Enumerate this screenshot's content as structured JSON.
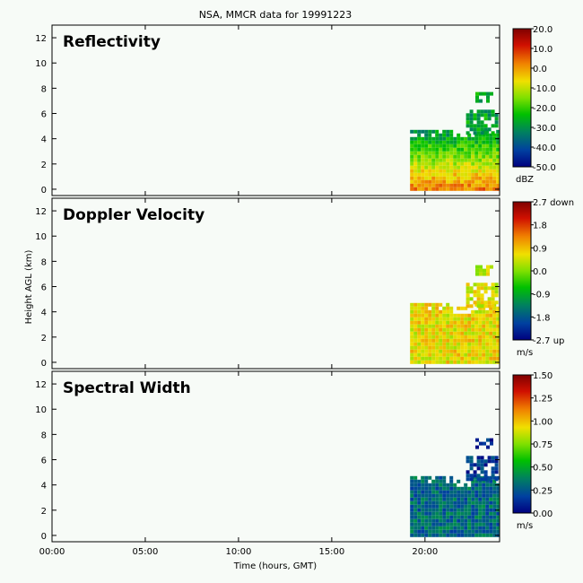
{
  "chart_data": {
    "type": "heatmap",
    "title": "NSA, MMCR data for 19991223",
    "xlabel": "Time (hours, GMT)",
    "ylabel": "Height AGL (km)",
    "xlim": [
      0,
      24
    ],
    "ylim": [
      -0.5,
      13
    ],
    "x_ticks": [
      "00:00",
      "05:00",
      "10:00",
      "15:00",
      "20:00"
    ],
    "x_tick_values": [
      0,
      5,
      10,
      15,
      20
    ],
    "y_ticks": [
      "0",
      "2",
      "4",
      "6",
      "8",
      "10",
      "12"
    ],
    "y_tick_values": [
      0,
      2,
      4,
      6,
      8,
      10,
      12
    ],
    "cloud_regions": [
      {
        "x": [
          19.2,
          23.9
        ],
        "y": [
          0,
          4.7
        ],
        "description": "main low cloud layer"
      },
      {
        "x": [
          22.2,
          23.8
        ],
        "y": [
          4.5,
          6.3
        ],
        "description": "upper extension"
      },
      {
        "x": [
          22.7,
          23.5
        ],
        "y": [
          7.1,
          7.7
        ],
        "description": "thin cirrus streak"
      }
    ],
    "panels": [
      {
        "title": "Reflectivity",
        "colorbar_ticks": [
          "20.0",
          "10.0",
          "0.0",
          "-10.0",
          "-20.0",
          "-30.0",
          "-40.0",
          "-50.0"
        ],
        "colorbar_range": [
          -50,
          20
        ],
        "unit": "dBZ",
        "main_value": 0.55,
        "upper_value": 0.32,
        "streak_value": 0.35
      },
      {
        "title": "Doppler Velocity",
        "colorbar_ticks": [
          "2.7 down",
          "1.8",
          "0.9",
          "0.0",
          "-0.9",
          "-1.8",
          "-2.7 up"
        ],
        "colorbar_range": [
          -2.7,
          2.7
        ],
        "unit": "m/s",
        "main_value": 0.62,
        "upper_value": 0.6,
        "streak_value": 0.56
      },
      {
        "title": "Spectral Width",
        "colorbar_ticks": [
          "1.50",
          "1.25",
          "1.00",
          "0.75",
          "0.50",
          "0.25",
          "0.00"
        ],
        "colorbar_range": [
          0,
          1.5
        ],
        "unit": "m/s",
        "main_value": 0.2,
        "upper_value": 0.1,
        "streak_value": 0.08
      }
    ]
  }
}
